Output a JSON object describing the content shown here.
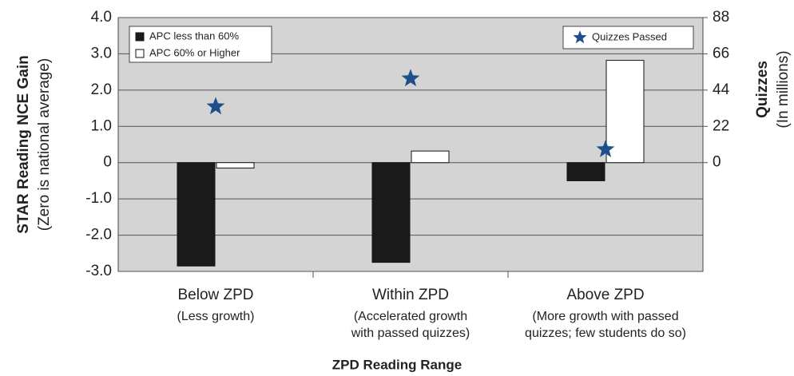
{
  "chart_data": {
    "type": "bar",
    "categories": [
      "Below ZPD",
      "Within ZPD",
      "Above ZPD"
    ],
    "category_notes": [
      [
        "(Less growth)"
      ],
      [
        "(Accelerated growth",
        "with passed quizzes)"
      ],
      [
        "(More growth with passed",
        "quizzes; few students do so)"
      ]
    ],
    "series": [
      {
        "name": "APC less than 60%",
        "color": "#1a1a1a",
        "values": [
          -2.85,
          -2.75,
          -0.5
        ]
      },
      {
        "name": "APC 60% or Higher",
        "color": "#ffffff",
        "values": [
          -0.15,
          0.32,
          2.82
        ]
      },
      {
        "name": "Quizzes Passed",
        "color": "#1f4e8c",
        "type": "scatter",
        "axis": "y2",
        "values": [
          34,
          51,
          8
        ]
      }
    ],
    "ylim": [
      -3,
      4
    ],
    "yticks": [
      {
        "value": -3,
        "label": "-3.0"
      },
      {
        "value": -2,
        "label": "-2.0"
      },
      {
        "value": -1,
        "label": "-1.0"
      },
      0,
      {
        "value": 1,
        "label": "1.0"
      },
      {
        "value": 2,
        "label": "2.0"
      },
      {
        "value": 3,
        "label": "3.0"
      },
      {
        "value": 4,
        "label": "4.0"
      }
    ],
    "y2lim": [
      -66,
      88
    ],
    "y2ticks": [
      0,
      22,
      44,
      66,
      88
    ],
    "ylabel": "STAR Reading NCE Gain",
    "ylabel_note": "(Zero is national average)",
    "y2label": "Quizzes",
    "y2label_note": "(In millions)",
    "xlabel": "ZPD Reading Range",
    "y2_color": "#2a6bb0",
    "plot_background": "#d4d4d4",
    "grid": true
  }
}
